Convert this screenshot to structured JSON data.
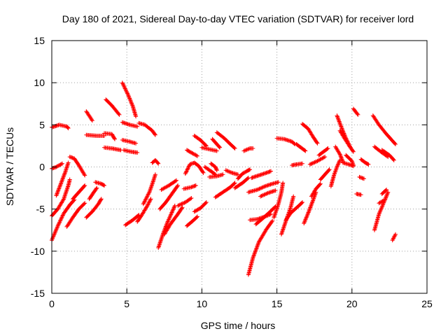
{
  "chart_data": {
    "type": "scatter",
    "title": "Day 180 of 2021, Sidereal Day-to-day VTEC variation (SDTVAR) for receiver lord",
    "xlabel": "GPS time / hours",
    "ylabel": "SDTVAR / TECUs",
    "xlim": [
      0,
      25
    ],
    "ylim": [
      -15,
      15
    ],
    "xticks": [
      0,
      5,
      10,
      15,
      20,
      25
    ],
    "yticks": [
      -15,
      -10,
      -5,
      0,
      5,
      10,
      15
    ],
    "grid": true,
    "marker": "plus",
    "color": "#ff0000",
    "tracks": [
      [
        [
          0.0,
          -8.7
        ],
        [
          0.4,
          -7.0
        ],
        [
          0.8,
          -5.5
        ],
        [
          1.2,
          -4.5
        ],
        [
          1.5,
          -3.9
        ]
      ],
      [
        [
          0.0,
          -5.8
        ],
        [
          0.4,
          -5.0
        ],
        [
          0.8,
          -3.8
        ],
        [
          1.1,
          -2.2
        ],
        [
          1.2,
          -1.5
        ]
      ],
      [
        [
          0.3,
          -3.4
        ],
        [
          0.6,
          -2.0
        ],
        [
          0.9,
          -0.6
        ],
        [
          1.1,
          0.5
        ]
      ],
      [
        [
          0.0,
          -0.2
        ],
        [
          0.3,
          0.0
        ],
        [
          0.7,
          0.4
        ]
      ],
      [
        [
          0.0,
          4.7
        ],
        [
          0.5,
          5.0
        ],
        [
          1.0,
          4.8
        ],
        [
          1.1,
          4.6
        ]
      ],
      [
        [
          1.2,
          1.2
        ],
        [
          1.5,
          1.0
        ],
        [
          1.8,
          0.2
        ],
        [
          2.2,
          -1.0
        ]
      ],
      [
        [
          1.0,
          -7.1
        ],
        [
          1.4,
          -6.0
        ],
        [
          1.8,
          -5.0
        ],
        [
          2.2,
          -4.3
        ]
      ],
      [
        [
          1.4,
          -3.8
        ],
        [
          1.8,
          -3.0
        ],
        [
          2.2,
          -2.2
        ]
      ],
      [
        [
          2.3,
          -6.0
        ],
        [
          2.7,
          -5.3
        ],
        [
          3.1,
          -4.4
        ],
        [
          3.3,
          -3.8
        ]
      ],
      [
        [
          2.5,
          -3.8
        ],
        [
          2.8,
          -3.0
        ],
        [
          3.0,
          -2.5
        ]
      ],
      [
        [
          2.9,
          -1.8
        ],
        [
          3.3,
          -2.0
        ],
        [
          3.5,
          -2.2
        ]
      ],
      [
        [
          2.3,
          6.6
        ],
        [
          2.7,
          5.5
        ]
      ],
      [
        [
          2.3,
          3.8
        ],
        [
          3.0,
          3.7
        ],
        [
          3.5,
          3.7
        ]
      ],
      [
        [
          3.5,
          4.0
        ],
        [
          4.0,
          3.9
        ],
        [
          4.2,
          3.3
        ]
      ],
      [
        [
          3.5,
          2.3
        ],
        [
          4.0,
          2.2
        ],
        [
          4.6,
          2.0
        ]
      ],
      [
        [
          3.6,
          8.0
        ],
        [
          4.0,
          7.3
        ],
        [
          4.5,
          6.2
        ]
      ],
      [
        [
          4.7,
          10.0
        ],
        [
          5.1,
          8.5
        ],
        [
          5.4,
          7.2
        ],
        [
          5.6,
          6.0
        ]
      ],
      [
        [
          4.7,
          3.2
        ],
        [
          5.2,
          3.0
        ],
        [
          5.6,
          2.8
        ]
      ],
      [
        [
          4.8,
          2.0
        ],
        [
          5.3,
          1.8
        ],
        [
          5.7,
          1.7
        ]
      ],
      [
        [
          4.7,
          5.3
        ],
        [
          5.2,
          5.0
        ],
        [
          5.7,
          4.8
        ]
      ],
      [
        [
          5.8,
          5.2
        ],
        [
          6.2,
          5.0
        ],
        [
          6.7,
          4.3
        ],
        [
          6.9,
          3.8
        ]
      ],
      [
        [
          4.9,
          -6.9
        ],
        [
          5.4,
          -6.3
        ],
        [
          5.8,
          -5.7
        ]
      ],
      [
        [
          5.7,
          -6.5
        ],
        [
          6.0,
          -5.7
        ],
        [
          6.4,
          -4.5
        ],
        [
          6.6,
          -3.8
        ]
      ],
      [
        [
          6.1,
          -4.4
        ],
        [
          6.5,
          -3.0
        ],
        [
          6.7,
          -2.0
        ],
        [
          6.9,
          -0.9
        ]
      ],
      [
        [
          6.7,
          0.5
        ],
        [
          6.9,
          0.8
        ],
        [
          7.1,
          0.4
        ]
      ],
      [
        [
          7.1,
          -9.6
        ],
        [
          7.4,
          -8.0
        ],
        [
          7.7,
          -6.6
        ],
        [
          8.0,
          -5.4
        ],
        [
          8.2,
          -4.6
        ]
      ],
      [
        [
          7.5,
          -8.0
        ],
        [
          7.9,
          -6.8
        ],
        [
          8.4,
          -5.6
        ],
        [
          8.7,
          -4.8
        ]
      ],
      [
        [
          7.2,
          -5.0
        ],
        [
          7.6,
          -4.2
        ],
        [
          8.0,
          -3.2
        ],
        [
          8.4,
          -2.2
        ]
      ],
      [
        [
          7.3,
          -2.7
        ],
        [
          7.8,
          -2.2
        ],
        [
          8.3,
          -1.6
        ]
      ],
      [
        [
          8.4,
          -4.6
        ],
        [
          8.9,
          -4.2
        ],
        [
          9.3,
          -3.7
        ]
      ],
      [
        [
          8.8,
          -2.6
        ],
        [
          9.3,
          -2.4
        ],
        [
          9.6,
          -2.2
        ]
      ],
      [
        [
          8.9,
          -0.8
        ],
        [
          9.2,
          0.3
        ],
        [
          9.5,
          0.5
        ],
        [
          9.8,
          0.1
        ],
        [
          10.1,
          -0.7
        ]
      ],
      [
        [
          9.0,
          2.0
        ],
        [
          9.4,
          1.6
        ],
        [
          9.7,
          1.3
        ]
      ],
      [
        [
          9.5,
          3.7
        ],
        [
          9.9,
          3.2
        ],
        [
          10.3,
          2.5
        ]
      ],
      [
        [
          9.0,
          -7.0
        ],
        [
          9.4,
          -6.4
        ],
        [
          9.7,
          -5.9
        ]
      ],
      [
        [
          9.5,
          -5.3
        ],
        [
          9.9,
          -4.9
        ],
        [
          10.3,
          -4.2
        ]
      ],
      [
        [
          10.0,
          2.3
        ],
        [
          10.5,
          2.1
        ],
        [
          11.0,
          1.9
        ]
      ],
      [
        [
          10.2,
          0.0
        ],
        [
          10.6,
          -0.5
        ],
        [
          10.9,
          -0.9
        ]
      ],
      [
        [
          10.5,
          -1.2
        ],
        [
          11.0,
          -1.1
        ],
        [
          11.4,
          -0.9
        ]
      ],
      [
        [
          10.6,
          0.4
        ],
        [
          10.9,
          0.0
        ],
        [
          11.0,
          -0.4
        ]
      ],
      [
        [
          10.7,
          3.3
        ],
        [
          11.0,
          2.7
        ],
        [
          11.2,
          2.3
        ]
      ],
      [
        [
          11.0,
          4.1
        ],
        [
          11.5,
          3.4
        ],
        [
          11.9,
          2.7
        ],
        [
          12.2,
          2.2
        ]
      ],
      [
        [
          11.6,
          -0.4
        ],
        [
          12.0,
          -0.7
        ],
        [
          12.4,
          -0.9
        ]
      ],
      [
        [
          10.9,
          -3.6
        ],
        [
          11.4,
          -3.0
        ],
        [
          11.9,
          -2.4
        ],
        [
          12.2,
          -1.9
        ]
      ],
      [
        [
          12.2,
          -2.5
        ],
        [
          12.7,
          -1.9
        ],
        [
          13.1,
          -1.3
        ]
      ],
      [
        [
          12.4,
          -1.4
        ],
        [
          12.7,
          -0.8
        ],
        [
          13.0,
          -0.5
        ],
        [
          13.2,
          -0.3
        ]
      ],
      [
        [
          12.8,
          1.9
        ],
        [
          13.2,
          2.2
        ],
        [
          13.4,
          2.2
        ]
      ],
      [
        [
          13.3,
          -1.3
        ],
        [
          13.8,
          -1.0
        ],
        [
          14.3,
          -0.7
        ],
        [
          14.6,
          -0.5
        ]
      ],
      [
        [
          13.1,
          -12.8
        ],
        [
          13.4,
          -10.8
        ],
        [
          13.8,
          -8.9
        ],
        [
          14.3,
          -7.4
        ],
        [
          14.7,
          -6.4
        ]
      ],
      [
        [
          13.2,
          -6.3
        ],
        [
          13.7,
          -6.2
        ],
        [
          14.2,
          -5.9
        ],
        [
          14.6,
          -5.6
        ]
      ],
      [
        [
          13.6,
          -6.8
        ],
        [
          14.0,
          -6.2
        ],
        [
          14.5,
          -5.4
        ],
        [
          14.9,
          -4.7
        ]
      ],
      [
        [
          13.1,
          -3.0
        ],
        [
          13.7,
          -2.7
        ],
        [
          14.2,
          -2.3
        ],
        [
          14.7,
          -2.0
        ],
        [
          15.1,
          -1.8
        ]
      ],
      [
        [
          13.9,
          -3.5
        ],
        [
          14.4,
          -3.1
        ],
        [
          14.9,
          -2.8
        ]
      ],
      [
        [
          14.8,
          -6.0
        ],
        [
          15.1,
          -4.4
        ],
        [
          15.3,
          -3.0
        ],
        [
          15.4,
          -1.9
        ]
      ],
      [
        [
          15.3,
          -8.0
        ],
        [
          15.6,
          -6.4
        ],
        [
          15.9,
          -4.9
        ],
        [
          16.1,
          -3.5
        ]
      ],
      [
        [
          15.6,
          -6.3
        ],
        [
          15.9,
          -5.5
        ],
        [
          16.4,
          -4.7
        ],
        [
          16.7,
          -4.2
        ]
      ],
      [
        [
          15.0,
          3.4
        ],
        [
          15.5,
          3.3
        ],
        [
          16.0,
          3.0
        ],
        [
          16.2,
          2.7
        ]
      ],
      [
        [
          16.0,
          0.2
        ],
        [
          16.3,
          0.3
        ],
        [
          16.7,
          0.4
        ]
      ],
      [
        [
          16.3,
          2.7
        ],
        [
          16.6,
          2.3
        ],
        [
          16.9,
          1.9
        ]
      ],
      [
        [
          16.7,
          5.1
        ],
        [
          17.1,
          4.5
        ],
        [
          17.4,
          3.6
        ],
        [
          17.7,
          2.8
        ]
      ],
      [
        [
          16.8,
          -6.7
        ],
        [
          17.1,
          -5.4
        ],
        [
          17.4,
          -4.0
        ],
        [
          17.6,
          -3.0
        ]
      ],
      [
        [
          17.3,
          -3.5
        ],
        [
          17.6,
          -2.6
        ],
        [
          17.9,
          -2.0
        ]
      ],
      [
        [
          17.2,
          0.3
        ],
        [
          17.7,
          0.7
        ],
        [
          18.2,
          1.2
        ]
      ],
      [
        [
          17.8,
          1.4
        ],
        [
          18.1,
          1.8
        ],
        [
          18.4,
          2.2
        ]
      ],
      [
        [
          17.9,
          -1.5
        ],
        [
          18.2,
          -0.9
        ],
        [
          18.5,
          -0.3
        ]
      ],
      [
        [
          18.6,
          -2.3
        ],
        [
          18.8,
          -1.0
        ],
        [
          19.0,
          0.0
        ],
        [
          19.2,
          0.8
        ]
      ],
      [
        [
          18.9,
          2.4
        ],
        [
          19.2,
          1.5
        ],
        [
          19.4,
          0.6
        ]
      ],
      [
        [
          19.0,
          6.1
        ],
        [
          19.3,
          4.7
        ],
        [
          19.6,
          3.4
        ],
        [
          19.9,
          2.3
        ],
        [
          20.1,
          1.8
        ]
      ],
      [
        [
          19.2,
          4.3
        ],
        [
          19.5,
          3.4
        ],
        [
          19.9,
          2.3
        ]
      ],
      [
        [
          19.4,
          0.5
        ],
        [
          19.8,
          0.3
        ],
        [
          20.1,
          0.1
        ]
      ],
      [
        [
          19.6,
          1.4
        ],
        [
          20.0,
          0.7
        ],
        [
          20.1,
          0.2
        ]
      ],
      [
        [
          20.1,
          6.9
        ],
        [
          20.4,
          6.2
        ]
      ],
      [
        [
          20.3,
          -3.2
        ],
        [
          20.6,
          -3.3
        ]
      ],
      [
        [
          20.5,
          -1.2
        ],
        [
          20.8,
          -1.4
        ]
      ],
      [
        [
          20.6,
          0.9
        ],
        [
          20.9,
          0.5
        ],
        [
          21.1,
          0.3
        ]
      ],
      [
        [
          21.4,
          6.1
        ],
        [
          21.8,
          5.0
        ],
        [
          22.3,
          3.9
        ],
        [
          22.9,
          2.7
        ]
      ],
      [
        [
          21.5,
          2.4
        ],
        [
          22.0,
          1.7
        ],
        [
          22.4,
          1.2
        ]
      ],
      [
        [
          22.0,
          2.0
        ],
        [
          22.5,
          1.4
        ],
        [
          22.8,
          0.8
        ]
      ],
      [
        [
          21.5,
          -7.5
        ],
        [
          21.8,
          -5.6
        ],
        [
          22.2,
          -3.9
        ],
        [
          22.4,
          -3.0
        ]
      ],
      [
        [
          22.0,
          -3.2
        ],
        [
          22.3,
          -2.7
        ]
      ],
      [
        [
          22.7,
          -8.7
        ],
        [
          22.9,
          -8.0
        ]
      ],
      [
        [
          21.8,
          -4.3
        ],
        [
          22.1,
          -4.0
        ]
      ]
    ]
  }
}
